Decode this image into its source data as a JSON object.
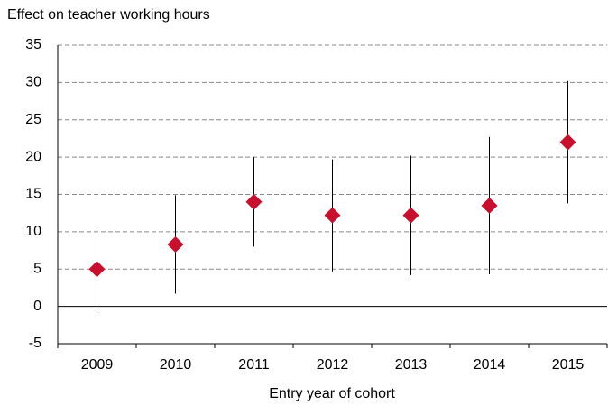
{
  "chart_data": {
    "type": "errorbar",
    "y_label": "Effect on teacher working hours",
    "x_label": "Entry year of cohort",
    "categories": [
      "2009",
      "2010",
      "2011",
      "2012",
      "2013",
      "2014",
      "2015"
    ],
    "values": [
      5,
      8.3,
      14,
      12.2,
      12.2,
      13.5,
      22
    ],
    "errors": [
      5.9,
      6.6,
      6,
      7.5,
      8,
      9.2,
      8.2
    ],
    "color": "#c8102e",
    "errorbar_color": "#000000",
    "ylim": [
      -5,
      35
    ],
    "yticks": [
      -5,
      0,
      5,
      10,
      15,
      20,
      25,
      30,
      35
    ],
    "grid": true
  }
}
